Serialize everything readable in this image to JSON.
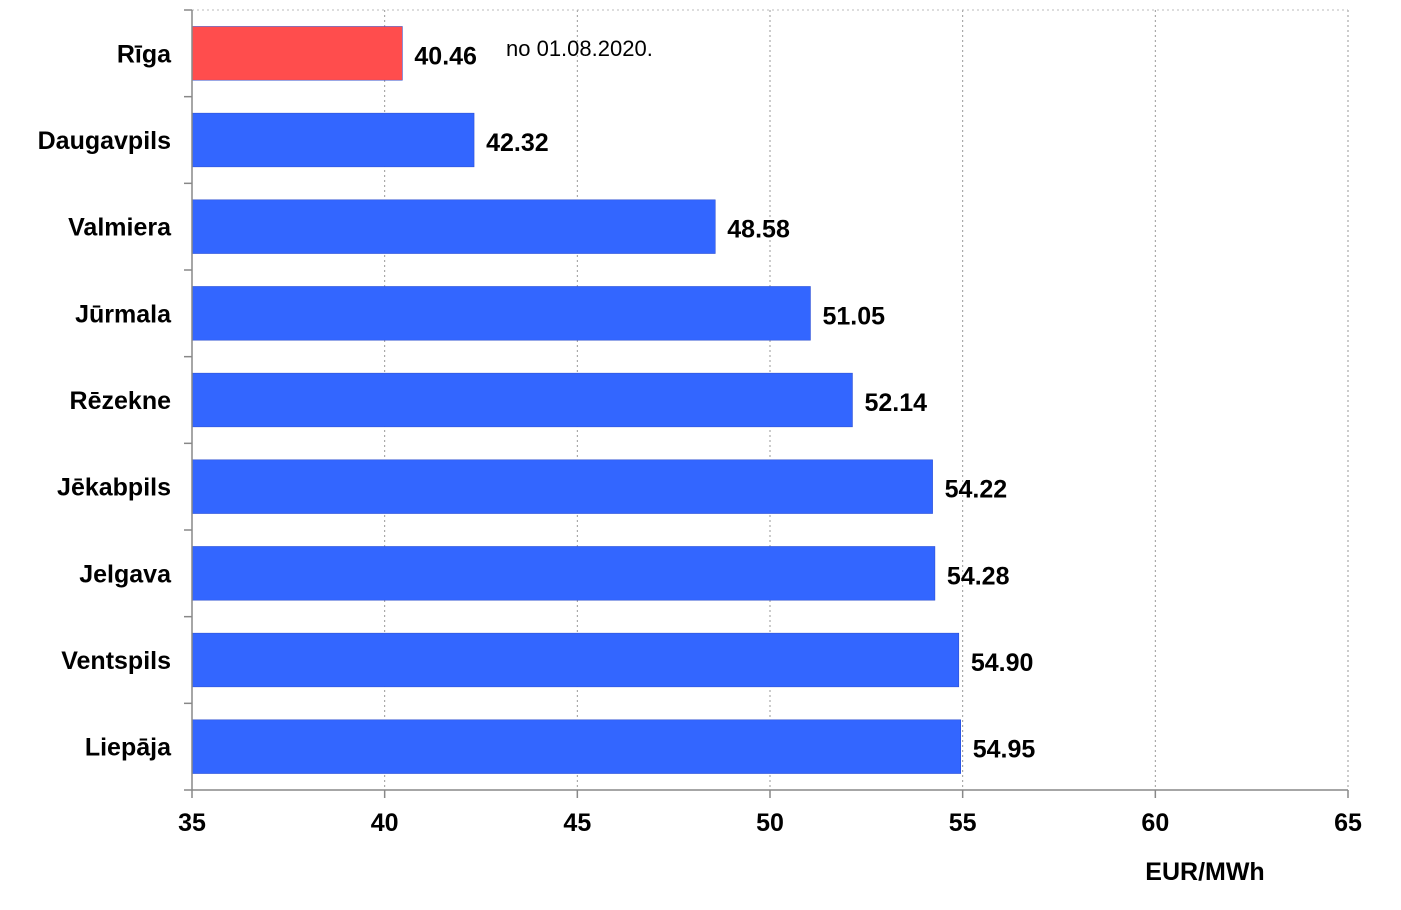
{
  "chart_data": {
    "type": "bar",
    "orientation": "horizontal",
    "categories": [
      "Rīga",
      "Daugavpils",
      "Valmiera",
      "Jūrmala",
      "Rēzekne",
      "Jēkabpils",
      "Jelgava",
      "Ventspils",
      "Liepāja"
    ],
    "values": [
      40.46,
      42.32,
      48.58,
      51.05,
      52.14,
      54.22,
      54.28,
      54.9,
      54.95
    ],
    "value_labels": [
      "40.46",
      "42.32",
      "48.58",
      "51.05",
      "52.14",
      "54.22",
      "54.28",
      "54.90",
      "54.95"
    ],
    "bar_colors": [
      "#ff4d4d",
      "#3366ff",
      "#3366ff",
      "#3366ff",
      "#3366ff",
      "#3366ff",
      "#3366ff",
      "#3366ff",
      "#3366ff"
    ],
    "xlim": [
      35,
      65
    ],
    "xticks": [
      35,
      40,
      45,
      50,
      55,
      60,
      65
    ],
    "xtick_labels": [
      "35",
      "40",
      "45",
      "50",
      "55",
      "60",
      "65"
    ],
    "xlabel": "EUR/MWh",
    "annotation": "no 01.08.2020.",
    "grid": "vertical dashed",
    "legend": "none"
  }
}
